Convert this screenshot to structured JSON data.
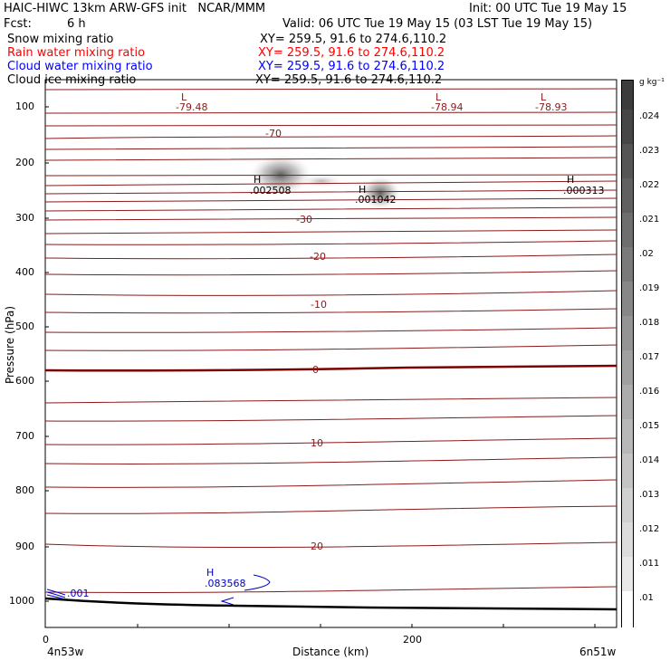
{
  "header": {
    "title": "HAIC-HIWC 13km ARW-GFS init   NCAR/MMM",
    "init": "Init: 00 UTC Tue 19 May 15",
    "fcst_label": "Fcst:",
    "fcst_value": "6 h",
    "valid": "Valid: 06 UTC Tue 19 May 15 (03 LST Tue 19 May 15)"
  },
  "fields": [
    {
      "name": "Snow mixing ratio",
      "xy": "XY= 259.5, 91.6 to 274.6,110.2",
      "color": "#000000"
    },
    {
      "name": "Rain water mixing ratio",
      "xy": "XY= 259.5, 91.6 to 274.6,110.2",
      "color": "#ff0000"
    },
    {
      "name": "Cloud water mixing ratio",
      "xy": "XY= 259.5, 91.6 to 274.6,110.2",
      "color": "#0000ff"
    },
    {
      "name": "Cloud ice mixing ratio",
      "xy": "XY= 259.5, 91.6 to 274.6,110.2",
      "color": "#000000"
    }
  ],
  "colors": {
    "temperature_contour": "#8b1a1a",
    "freezing_contour": "#7a0000",
    "cloud_water": "#0000cc",
    "terrain": "#000000"
  },
  "chart_data": {
    "type": "cross-section",
    "ylabel": "Pressure (hPa)",
    "xlabel": "Distance (km)",
    "y_ticks": [
      100,
      200,
      300,
      400,
      500,
      600,
      700,
      800,
      900,
      1000
    ],
    "x_ticks": [
      0,
      200
    ],
    "x_range": [
      0,
      310
    ],
    "y_range": [
      1050,
      40
    ],
    "left_endpoint": "4n53w",
    "right_endpoint": "6n51w",
    "temperature_labels": [
      {
        "value": "-70",
        "x": 120,
        "p": 150
      },
      {
        "value": "-30",
        "x": 140,
        "p": 290
      },
      {
        "value": "-20",
        "x": 148,
        "p": 353
      },
      {
        "value": "-10",
        "x": 150,
        "p": 450
      },
      {
        "value": "0",
        "x": 146,
        "p": 578
      },
      {
        "value": "10",
        "x": 148,
        "p": 741
      },
      {
        "value": "20",
        "x": 148,
        "p": 911
      }
    ],
    "extrema": [
      {
        "type": "L",
        "value": "-79.48",
        "x": 76,
        "p": 96,
        "color": "#8b1a1a"
      },
      {
        "type": "L",
        "value": "-78.94",
        "x": 215,
        "p": 96,
        "color": "#8b1a1a"
      },
      {
        "type": "L",
        "value": "-78.93",
        "x": 271,
        "p": 96,
        "color": "#8b1a1a"
      },
      {
        "type": "H",
        "value": ".002508",
        "x": 115,
        "p": 233,
        "color": "#000000"
      },
      {
        "type": "H",
        "value": ".001042",
        "x": 172,
        "p": 248,
        "color": "#000000"
      },
      {
        "type": "H",
        "value": ".000313",
        "x": 289,
        "p": 233,
        "color": "#000000"
      },
      {
        "type": "H",
        "value": ".083568",
        "x": 87,
        "p": 967,
        "color": "#0000cc"
      }
    ],
    "cloud_water_edge_label": ".001",
    "colorbar": {
      "unit": "g kg⁻¹",
      "levels": [
        ".01",
        ".011",
        ".012",
        ".013",
        ".014",
        ".015",
        ".016",
        ".017",
        ".018",
        ".019",
        ".02",
        ".021",
        ".022",
        ".023",
        ".024"
      ]
    }
  }
}
